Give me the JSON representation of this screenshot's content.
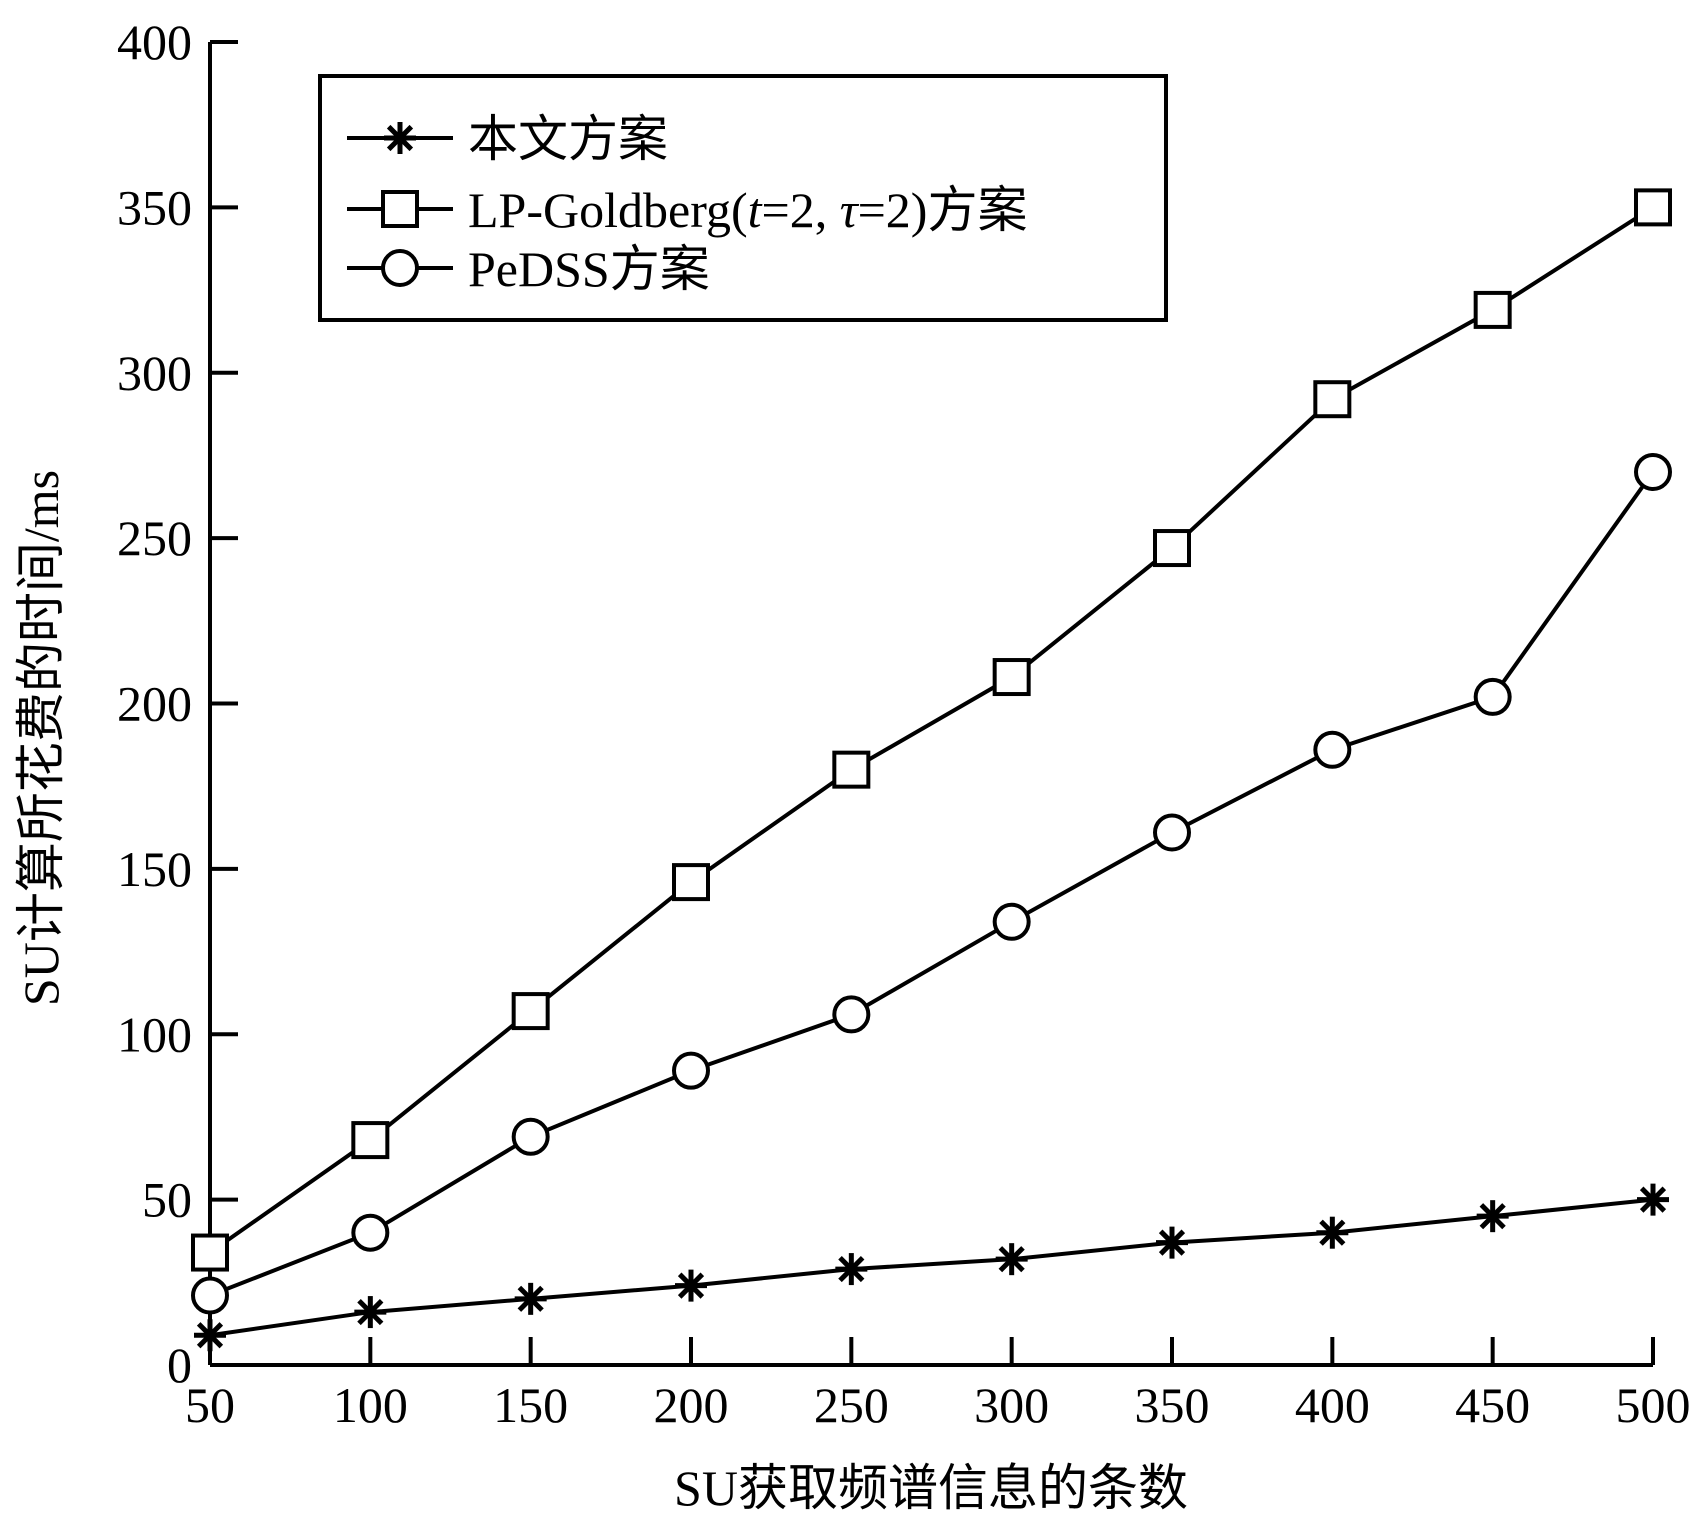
{
  "chart_data": {
    "type": "line",
    "xlabel": "SU获取频谱信息的条数",
    "ylabel": "SU计算所花费的时间/ms",
    "x": [
      50,
      100,
      150,
      200,
      250,
      300,
      350,
      400,
      450,
      500
    ],
    "xlim": [
      50,
      500
    ],
    "ylim": [
      0,
      400
    ],
    "xticks": [
      "50",
      "100",
      "150",
      "200",
      "250",
      "300",
      "350",
      "400",
      "450",
      "500"
    ],
    "yticks": [
      "0",
      "50",
      "100",
      "150",
      "200",
      "250",
      "300",
      "350",
      "400"
    ],
    "grid": false,
    "legend_position": "top-left",
    "series": [
      {
        "name": "本文方案",
        "marker": "star",
        "values": [
          9,
          16,
          20,
          24,
          29,
          32,
          37,
          40,
          45,
          50
        ]
      },
      {
        "name": "LP-Goldberg(t=2, τ=2)方案",
        "marker": "square",
        "values": [
          34,
          68,
          107,
          146,
          180,
          208,
          247,
          292,
          319,
          350
        ]
      },
      {
        "name": "PeDSS方案",
        "marker": "circle",
        "values": [
          21,
          40,
          69,
          89,
          106,
          134,
          161,
          186,
          202,
          270
        ]
      }
    ],
    "legend": {
      "entries": [
        {
          "prefix": "本文方案"
        },
        {
          "prefix": "LP-Goldberg(",
          "t": "t",
          "eq1": "=2, ",
          "tau": "τ",
          "eq2": "=2)方案"
        },
        {
          "prefix": "PeDSS方案"
        }
      ]
    }
  }
}
